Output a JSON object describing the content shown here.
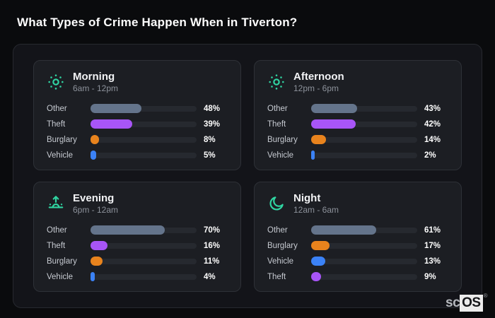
{
  "page": {
    "title": "What Types of Crime Happen When in Tiverton?",
    "brand": {
      "prefix": "sc",
      "suffix": "OS",
      "mark": "®"
    }
  },
  "colors": {
    "accent_teal": "#30d5a2",
    "bar_other": "#64748b",
    "bar_theft": "#a855f7",
    "bar_burglary": "#e8831d",
    "bar_vehicle": "#3b82f6",
    "track": "#26292f"
  },
  "chart_data": [
    {
      "type": "bar",
      "orientation": "horizontal",
      "title": "Morning",
      "subtitle": "6am - 12pm",
      "icon": "sun",
      "categories": [
        "Other",
        "Theft",
        "Burglary",
        "Vehicle"
      ],
      "values": [
        48,
        39,
        8,
        5
      ],
      "unit": "%",
      "xlim": [
        0,
        100
      ],
      "grid": false,
      "legend": false
    },
    {
      "type": "bar",
      "orientation": "horizontal",
      "title": "Afternoon",
      "subtitle": "12pm - 6pm",
      "icon": "sun",
      "categories": [
        "Other",
        "Theft",
        "Burglary",
        "Vehicle"
      ],
      "values": [
        43,
        42,
        14,
        2
      ],
      "unit": "%",
      "xlim": [
        0,
        100
      ],
      "grid": false,
      "legend": false
    },
    {
      "type": "bar",
      "orientation": "horizontal",
      "title": "Evening",
      "subtitle": "6pm - 12am",
      "icon": "sunrise",
      "categories": [
        "Other",
        "Theft",
        "Burglary",
        "Vehicle"
      ],
      "values": [
        70,
        16,
        11,
        4
      ],
      "unit": "%",
      "xlim": [
        0,
        100
      ],
      "grid": false,
      "legend": false
    },
    {
      "type": "bar",
      "orientation": "horizontal",
      "title": "Night",
      "subtitle": "12am - 6am",
      "icon": "moon",
      "categories": [
        "Other",
        "Burglary",
        "Vehicle",
        "Theft"
      ],
      "values": [
        61,
        17,
        13,
        9
      ],
      "unit": "%",
      "xlim": [
        0,
        100
      ],
      "grid": false,
      "legend": false
    }
  ]
}
